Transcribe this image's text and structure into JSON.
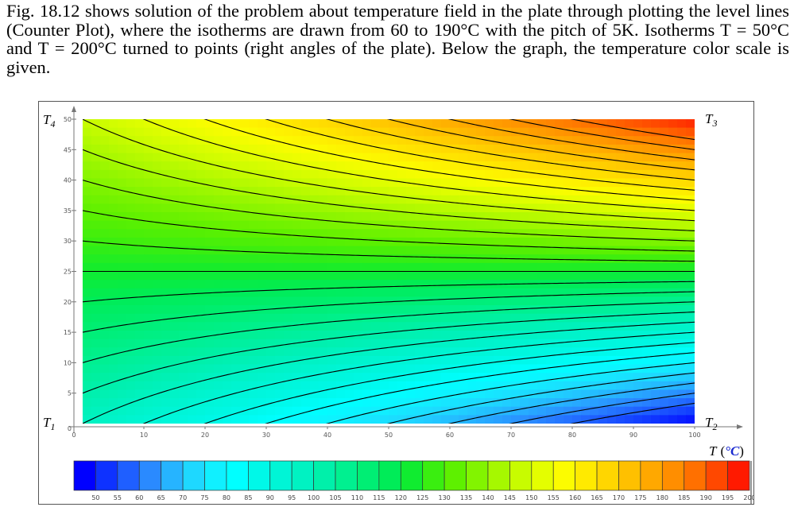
{
  "paragraph": {
    "line1": "Fig. 18.12 shows solution of the problem about temperature field in the plate through plotting the",
    "line2": "level lines (Counter Plot), where the isotherms are drawn from 60 to 190°C with the pitch of 5K.",
    "line3": "Isotherms T = 50°C and T = 200°C turned to points (right angles of the plate). Below the graph,",
    "line4": "the temperature color scale is given."
  },
  "corner_labels": {
    "T1": {
      "main": "T",
      "sub": "1"
    },
    "T2": {
      "main": "T",
      "sub": "2"
    },
    "T3": {
      "main": "T",
      "sub": "3"
    },
    "T4": {
      "main": "T",
      "sub": "4"
    }
  },
  "scale_label": {
    "symbol": "T",
    "unit_open": "(",
    "unit": "°C",
    "unit_close": ")"
  },
  "chart_data": [
    {
      "type": "heatmap",
      "x_ticks": [
        0,
        10,
        20,
        30,
        40,
        50,
        60,
        70,
        80,
        90,
        100
      ],
      "y_ticks": [
        0,
        5,
        10,
        15,
        20,
        25,
        30,
        35,
        40,
        45,
        50
      ],
      "xlim": [
        0,
        100
      ],
      "ylim": [
        0,
        50
      ],
      "corner_temperatures": {
        "bottom_left": 100,
        "bottom_right": 50,
        "top_right": 200,
        "top_left": 150
      },
      "isotherm_levels": {
        "start": 60,
        "end": 190,
        "step": 5
      }
    },
    {
      "type": "bar",
      "colorbar_values": [
        50,
        55,
        60,
        65,
        70,
        75,
        80,
        85,
        90,
        95,
        100,
        105,
        110,
        115,
        120,
        125,
        130,
        135,
        140,
        145,
        150,
        155,
        160,
        165,
        170,
        175,
        180,
        185,
        190,
        195,
        200
      ],
      "colors": [
        "#0000ff",
        "#0e32ff",
        "#1f5fff",
        "#2a8aff",
        "#26b4ff",
        "#1ed8ff",
        "#10f0ff",
        "#00ffff",
        "#00f8e8",
        "#00f5d6",
        "#00f2c2",
        "#00f0aa",
        "#00f090",
        "#00ee74",
        "#00ec58",
        "#10ec30",
        "#3aee10",
        "#5ef000",
        "#82f400",
        "#a6f800",
        "#c8fc00",
        "#e4fe00",
        "#fcfc00",
        "#ffea00",
        "#ffd600",
        "#ffc000",
        "#ffa800",
        "#ff8e00",
        "#ff7000",
        "#ff4800",
        "#ff1a00"
      ]
    }
  ]
}
